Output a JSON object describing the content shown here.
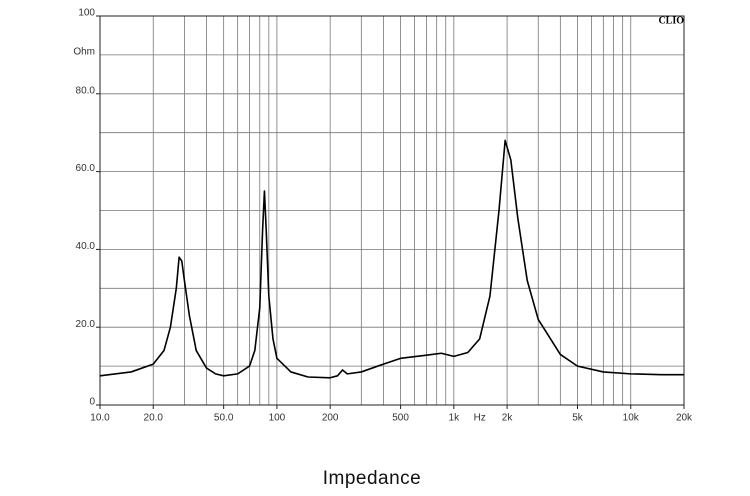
{
  "chart_data": {
    "type": "line",
    "title": "Impedance",
    "brand": "CLIO",
    "x_label": "Hz",
    "y_label": "Ohm",
    "y_label_at": 90,
    "x_label_at": 1400,
    "log_x": true,
    "grid": true,
    "xlim": [
      10,
      20000
    ],
    "ylim": [
      0,
      100
    ],
    "xticks": [
      {
        "value": 10,
        "label": "10.0"
      },
      {
        "value": 20,
        "label": "20.0"
      },
      {
        "value": 50,
        "label": "50.0"
      },
      100,
      200,
      500,
      {
        "value": 1000,
        "label": "1k"
      },
      {
        "value": 2000,
        "label": "2k"
      },
      {
        "value": 5000,
        "label": "5k"
      },
      {
        "value": 10000,
        "label": "10k"
      },
      {
        "value": 20000,
        "label": "20k"
      }
    ],
    "yticks": [
      0,
      {
        "value": 20,
        "label": "20.0"
      },
      {
        "value": 40,
        "label": "40.0"
      },
      {
        "value": 60,
        "label": "60.0"
      },
      {
        "value": 80,
        "label": "80.0"
      },
      100
    ],
    "xgrid": [
      10,
      20,
      30,
      40,
      50,
      60,
      70,
      80,
      90,
      100,
      200,
      300,
      400,
      500,
      600,
      700,
      800,
      900,
      1000,
      2000,
      3000,
      4000,
      5000,
      6000,
      7000,
      8000,
      9000,
      10000,
      20000
    ],
    "ygrid": [
      0,
      10,
      20,
      30,
      40,
      50,
      60,
      70,
      80,
      90,
      100
    ],
    "series": [
      {
        "name": "Impedance",
        "color": "#000000",
        "x": [
          10,
          15,
          20,
          23,
          25,
          27,
          28,
          29,
          30,
          32,
          35,
          40,
          45,
          50,
          60,
          70,
          75,
          80,
          83,
          85,
          87,
          90,
          95,
          100,
          120,
          150,
          200,
          220,
          235,
          250,
          300,
          400,
          500,
          700,
          850,
          1000,
          1200,
          1400,
          1600,
          1800,
          1950,
          2100,
          2300,
          2600,
          3000,
          4000,
          5000,
          7000,
          10000,
          15000,
          20000
        ],
        "values": [
          7.5,
          8.5,
          10.5,
          14,
          20,
          30,
          38,
          37,
          32,
          23,
          14,
          9.5,
          8,
          7.5,
          8,
          10,
          14,
          25,
          45,
          55,
          45,
          28,
          17,
          12,
          8.5,
          7.2,
          7,
          7.5,
          9,
          8,
          8.5,
          10.5,
          12,
          12.8,
          13.3,
          12.5,
          13.5,
          17,
          28,
          50,
          68,
          63,
          48,
          32,
          22,
          13,
          10,
          8.5,
          8,
          7.8,
          7.8
        ]
      }
    ]
  }
}
